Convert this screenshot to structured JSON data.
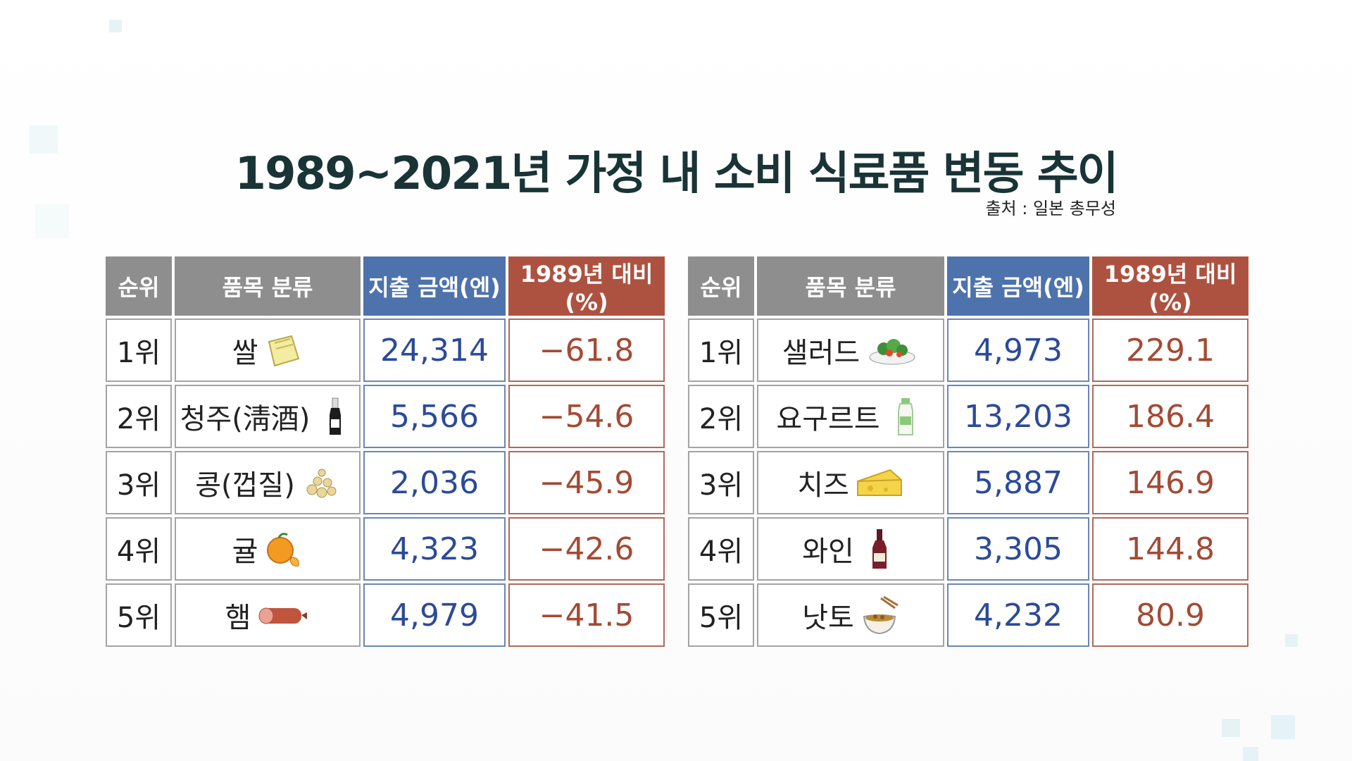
{
  "title": "1989~2021년 가정 내 소비 식료품 변동 추이",
  "source": "출처 : 일본 총무성",
  "headers": {
    "rank": "순위",
    "item": "품목 분류",
    "amount": "지출 금액(엔)",
    "ratio": "1989년 대비(%)"
  },
  "colors": {
    "header_gray": "#8e8e8e",
    "header_blue": "#4e72ab",
    "header_red": "#ad5241",
    "amount_text": "#2b4a9a",
    "ratio_text": "#a44a34",
    "title_text": "#1a3436"
  },
  "left_table": {
    "rows": [
      {
        "rank": "1위",
        "item": "쌀",
        "icon": "rice-bag-icon",
        "amount": "24,314",
        "ratio": "−61.8"
      },
      {
        "rank": "2위",
        "item": "청주(淸酒)",
        "icon": "sake-bottle-icon",
        "amount": "5,566",
        "ratio": "−54.6"
      },
      {
        "rank": "3위",
        "item": "콩(껍질)",
        "icon": "beans-icon",
        "amount": "2,036",
        "ratio": "−45.9"
      },
      {
        "rank": "4위",
        "item": "귤",
        "icon": "tangerine-icon",
        "amount": "4,323",
        "ratio": "−42.6"
      },
      {
        "rank": "5위",
        "item": "햄",
        "icon": "ham-icon",
        "amount": "4,979",
        "ratio": "−41.5"
      }
    ]
  },
  "right_table": {
    "rows": [
      {
        "rank": "1위",
        "item": "샐러드",
        "icon": "salad-icon",
        "amount": "4,973",
        "ratio": "229.1"
      },
      {
        "rank": "2위",
        "item": "요구르트",
        "icon": "yogurt-bottle-icon",
        "amount": "13,203",
        "ratio": "186.4"
      },
      {
        "rank": "3위",
        "item": "치즈",
        "icon": "cheese-icon",
        "amount": "5,887",
        "ratio": "146.9"
      },
      {
        "rank": "4위",
        "item": "와인",
        "icon": "wine-bottle-icon",
        "amount": "3,305",
        "ratio": "144.8"
      },
      {
        "rank": "5위",
        "item": "낫토",
        "icon": "natto-icon",
        "amount": "4,232",
        "ratio": "80.9"
      }
    ]
  }
}
